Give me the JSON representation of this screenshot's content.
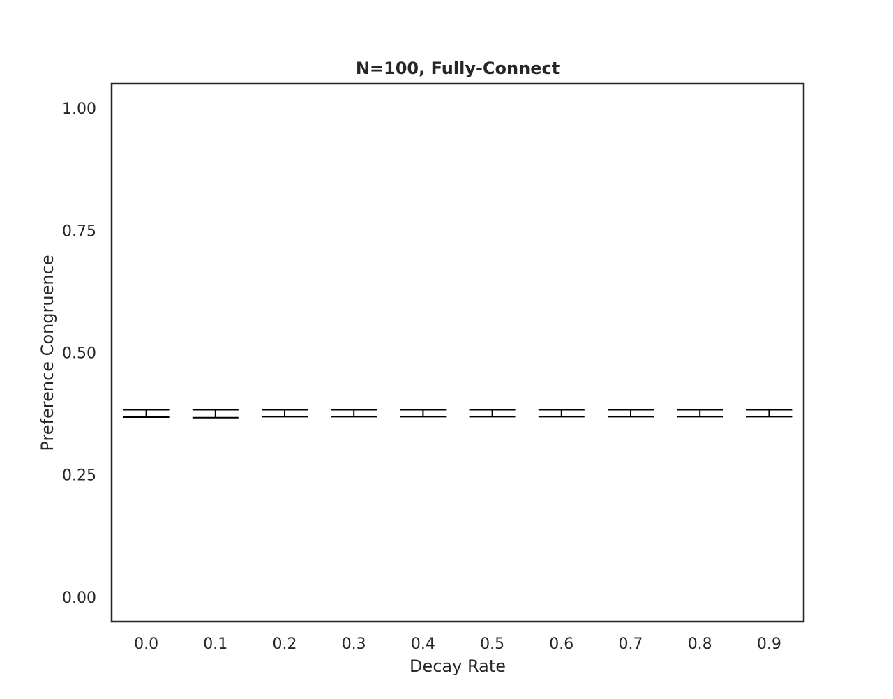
{
  "chart_data": {
    "type": "errorbar",
    "title": "N=100, Fully-Connect",
    "xlabel": "Decay Rate",
    "ylabel": "Preference Congruence",
    "categories": [
      "0.0",
      "0.1",
      "0.2",
      "0.3",
      "0.4",
      "0.5",
      "0.6",
      "0.7",
      "0.8",
      "0.9"
    ],
    "series": [
      {
        "mean": [
          0.376,
          0.375,
          0.377,
          0.377,
          0.377,
          0.377,
          0.377,
          0.377,
          0.377,
          0.377
        ],
        "lower": [
          0.368,
          0.367,
          0.369,
          0.369,
          0.369,
          0.369,
          0.369,
          0.369,
          0.369,
          0.369
        ],
        "upper": [
          0.383,
          0.383,
          0.383,
          0.383,
          0.383,
          0.383,
          0.383,
          0.383,
          0.383,
          0.383
        ]
      }
    ],
    "ylim": [
      -0.05,
      1.05
    ],
    "yticks": [
      0.0,
      0.25,
      0.5,
      0.75,
      1.0
    ],
    "ytick_labels": [
      "0.00",
      "0.25",
      "0.50",
      "0.75",
      "1.00"
    ],
    "grid": false,
    "legend": "none",
    "colors": {
      "errorbar": "#000000",
      "frame": "#262626",
      "text": "#262626"
    }
  }
}
